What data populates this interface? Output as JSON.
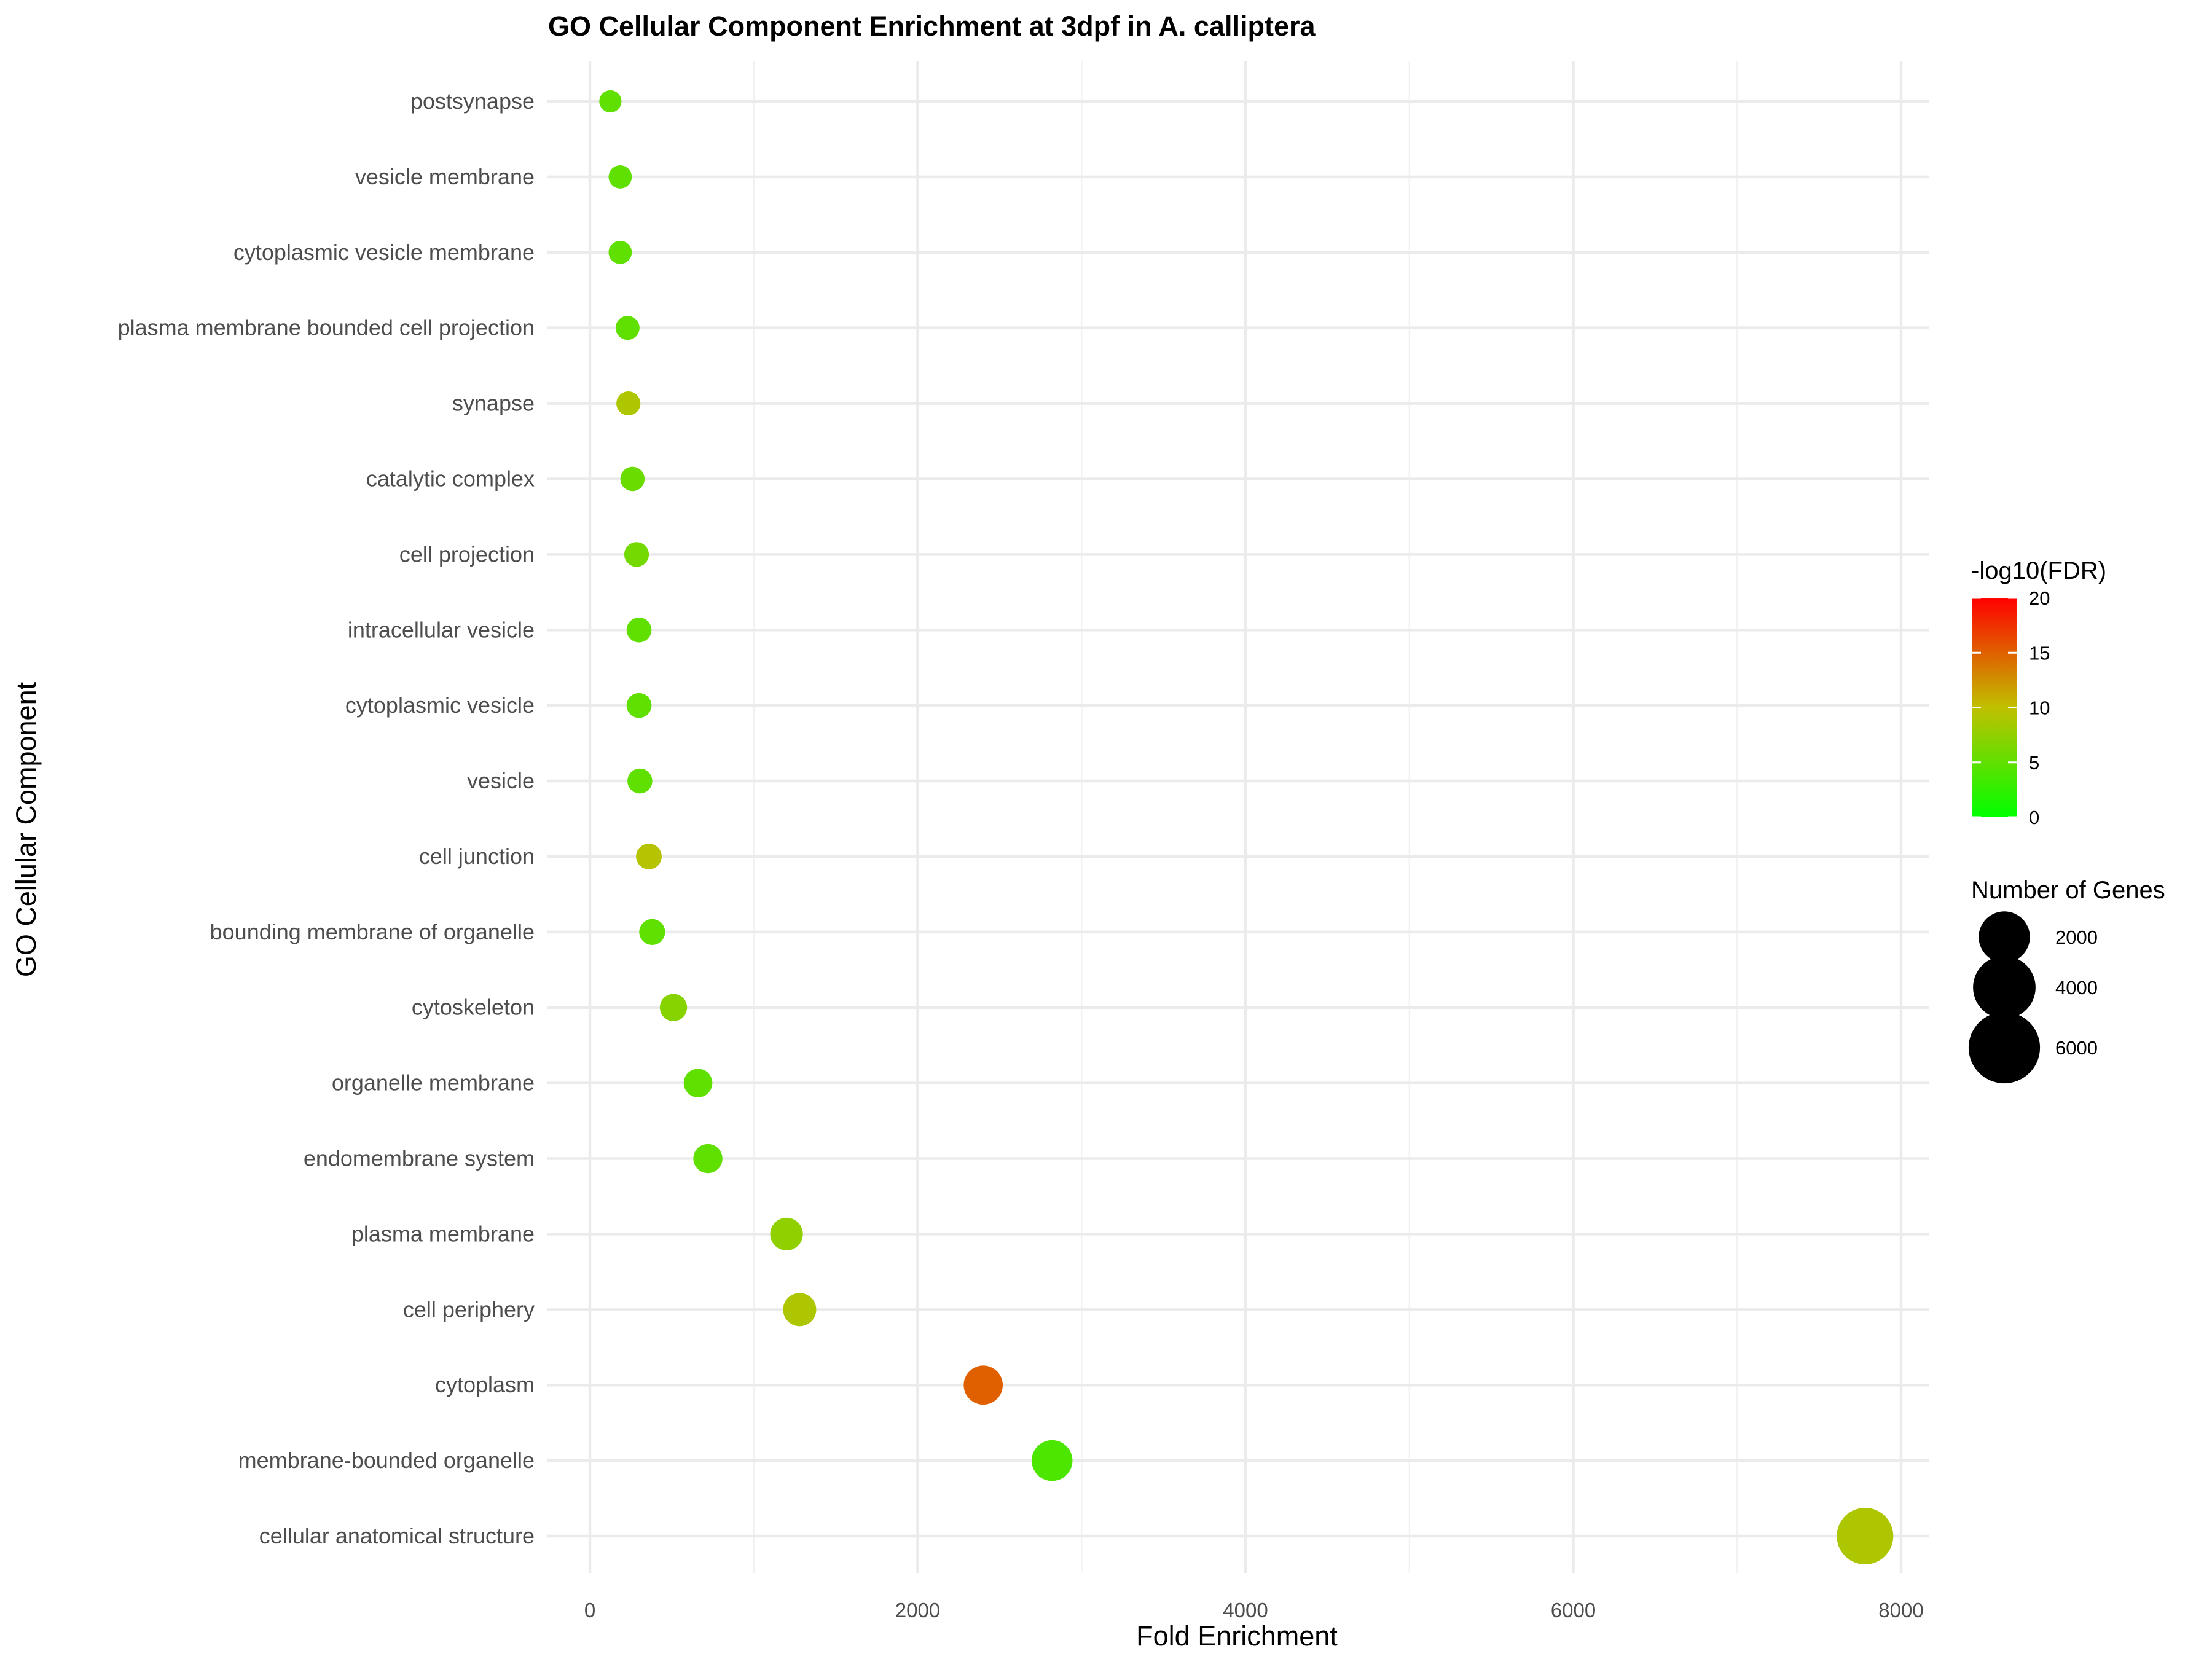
{
  "chart_data": {
    "type": "scatter",
    "title": "GO Cellular Component Enrichment at 3dpf in A. calliptera",
    "xlabel": "Fold Enrichment",
    "ylabel": "GO Cellular Component",
    "xlim": [
      -250,
      8200
    ],
    "x_ticks": [
      0,
      2000,
      4000,
      6000,
      8000
    ],
    "grid": true,
    "categories": [
      "cellular anatomical structure",
      "membrane-bounded organelle",
      "cytoplasm",
      "cell periphery",
      "plasma membrane",
      "endomembrane system",
      "organelle membrane",
      "cytoskeleton",
      "bounding membrane of organelle",
      "cell junction",
      "vesicle",
      "cytoplasmic vesicle",
      "intracellular vesicle",
      "cell projection",
      "catalytic complex",
      "synapse",
      "plasma membrane bounded cell projection",
      "cytoplasmic vesicle membrane",
      "vesicle membrane",
      "postsynapse"
    ],
    "points": [
      {
        "term": "cellular anatomical structure",
        "fold_enrichment": 7780,
        "neg_log10_fdr": 9.0,
        "genes": 7780
      },
      {
        "term": "membrane-bounded organelle",
        "fold_enrichment": 2820,
        "neg_log10_fdr": 4.0,
        "genes": 2820
      },
      {
        "term": "cytoplasm",
        "fold_enrichment": 2400,
        "neg_log10_fdr": 15.0,
        "genes": 2400
      },
      {
        "term": "cell periphery",
        "fold_enrichment": 1280,
        "neg_log10_fdr": 9.0,
        "genes": 1280
      },
      {
        "term": "plasma membrane",
        "fold_enrichment": 1200,
        "neg_log10_fdr": 7.5,
        "genes": 1200
      },
      {
        "term": "endomembrane system",
        "fold_enrichment": 720,
        "neg_log10_fdr": 5.0,
        "genes": 720
      },
      {
        "term": "organelle membrane",
        "fold_enrichment": 660,
        "neg_log10_fdr": 5.0,
        "genes": 660
      },
      {
        "term": "cytoskeleton",
        "fold_enrichment": 510,
        "neg_log10_fdr": 7.0,
        "genes": 510
      },
      {
        "term": "bounding membrane of organelle",
        "fold_enrichment": 380,
        "neg_log10_fdr": 5.0,
        "genes": 380
      },
      {
        "term": "cell junction",
        "fold_enrichment": 360,
        "neg_log10_fdr": 9.5,
        "genes": 360
      },
      {
        "term": "vesicle",
        "fold_enrichment": 305,
        "neg_log10_fdr": 5.0,
        "genes": 305
      },
      {
        "term": "cytoplasmic vesicle",
        "fold_enrichment": 300,
        "neg_log10_fdr": 5.0,
        "genes": 300
      },
      {
        "term": "intracellular vesicle",
        "fold_enrichment": 300,
        "neg_log10_fdr": 5.0,
        "genes": 300
      },
      {
        "term": "cell projection",
        "fold_enrichment": 285,
        "neg_log10_fdr": 6.0,
        "genes": 285
      },
      {
        "term": "catalytic complex",
        "fold_enrichment": 260,
        "neg_log10_fdr": 5.5,
        "genes": 260
      },
      {
        "term": "synapse",
        "fold_enrichment": 235,
        "neg_log10_fdr": 9.0,
        "genes": 235
      },
      {
        "term": "plasma membrane bounded cell projection",
        "fold_enrichment": 230,
        "neg_log10_fdr": 5.0,
        "genes": 230
      },
      {
        "term": "cytoplasmic vesicle membrane",
        "fold_enrichment": 185,
        "neg_log10_fdr": 5.0,
        "genes": 185
      },
      {
        "term": "vesicle membrane",
        "fold_enrichment": 185,
        "neg_log10_fdr": 5.0,
        "genes": 185
      },
      {
        "term": "postsynapse",
        "fold_enrichment": 125,
        "neg_log10_fdr": 5.0,
        "genes": 125
      }
    ],
    "color_legend": {
      "title": "-log10(FDR)",
      "range": [
        0,
        20
      ],
      "ticks": [
        0,
        5,
        10,
        15,
        20
      ],
      "colors": [
        "#00ff00",
        "#c0c000",
        "#ff0000"
      ],
      "position": "right"
    },
    "size_legend": {
      "title": "Number of Genes",
      "ticks": [
        2000,
        4000,
        6000
      ],
      "position": "right"
    }
  }
}
